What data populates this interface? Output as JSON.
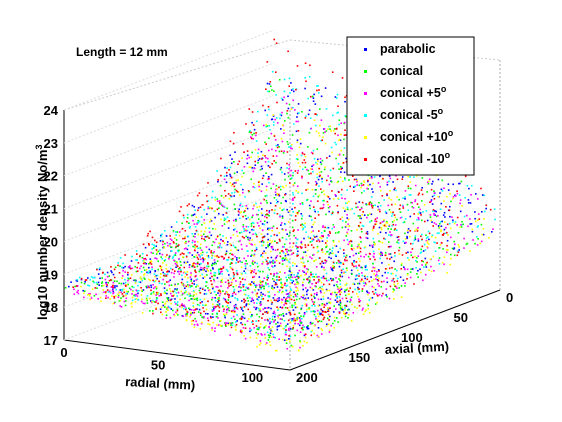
{
  "chart_data": {
    "type": "scatter",
    "annotation": "Length = 12 mm",
    "xlabel": "radial (mm)",
    "ylabel": "axial (mm)",
    "zlabel_text": "log10 number density No/m",
    "zlabel_sup": "3",
    "x_ticks": [
      "0",
      "50",
      "100"
    ],
    "y_ticks": [
      "0",
      "50",
      "100",
      "150",
      "200"
    ],
    "z_ticks": [
      "17",
      "18",
      "19",
      "20",
      "21",
      "22",
      "23",
      "24"
    ],
    "xlim": [
      0,
      120
    ],
    "ylim": [
      0,
      200
    ],
    "zlim": [
      17,
      24
    ],
    "grid": true,
    "legend_position": "top-right",
    "legend": [
      {
        "name": "parabolic",
        "sup": "",
        "color": "#0000ff"
      },
      {
        "name": "conical",
        "sup": "",
        "color": "#00ff00"
      },
      {
        "name": "conical +5",
        "sup": "o",
        "color": "#ff00ff"
      },
      {
        "name": "conical -5",
        "sup": "o",
        "color": "#00ffff"
      },
      {
        "name": "conical +10",
        "sup": "o",
        "color": "#ffff00"
      },
      {
        "name": "conical -10",
        "sup": "o",
        "color": "#ff0000"
      }
    ],
    "series": [
      {
        "name": "parabolic",
        "color": "#0000ff",
        "z_at_r0_a0": 19.0,
        "z_max": 23.0,
        "z_at_r0_a200": 18.7
      },
      {
        "name": "conical",
        "color": "#00ff00",
        "z_at_r0_a0": 18.8,
        "z_max": 22.6,
        "z_at_r0_a200": 18.6
      },
      {
        "name": "conical +5",
        "color": "#ff00ff",
        "z_at_r0_a0": 18.6,
        "z_max": 22.2,
        "z_at_r0_a200": 18.5
      },
      {
        "name": "conical -5",
        "color": "#00ffff",
        "z_at_r0_a0": 19.0,
        "z_max": 23.1,
        "z_at_r0_a200": 18.8
      },
      {
        "name": "conical +10",
        "color": "#ffff00",
        "z_at_r0_a0": 18.5,
        "z_max": 21.8,
        "z_at_r0_a200": 18.4
      },
      {
        "name": "conical -10",
        "color": "#ff0000",
        "z_at_r0_a0": 18.9,
        "z_max": 23.8,
        "z_at_r0_a200": 18.8
      }
    ]
  }
}
